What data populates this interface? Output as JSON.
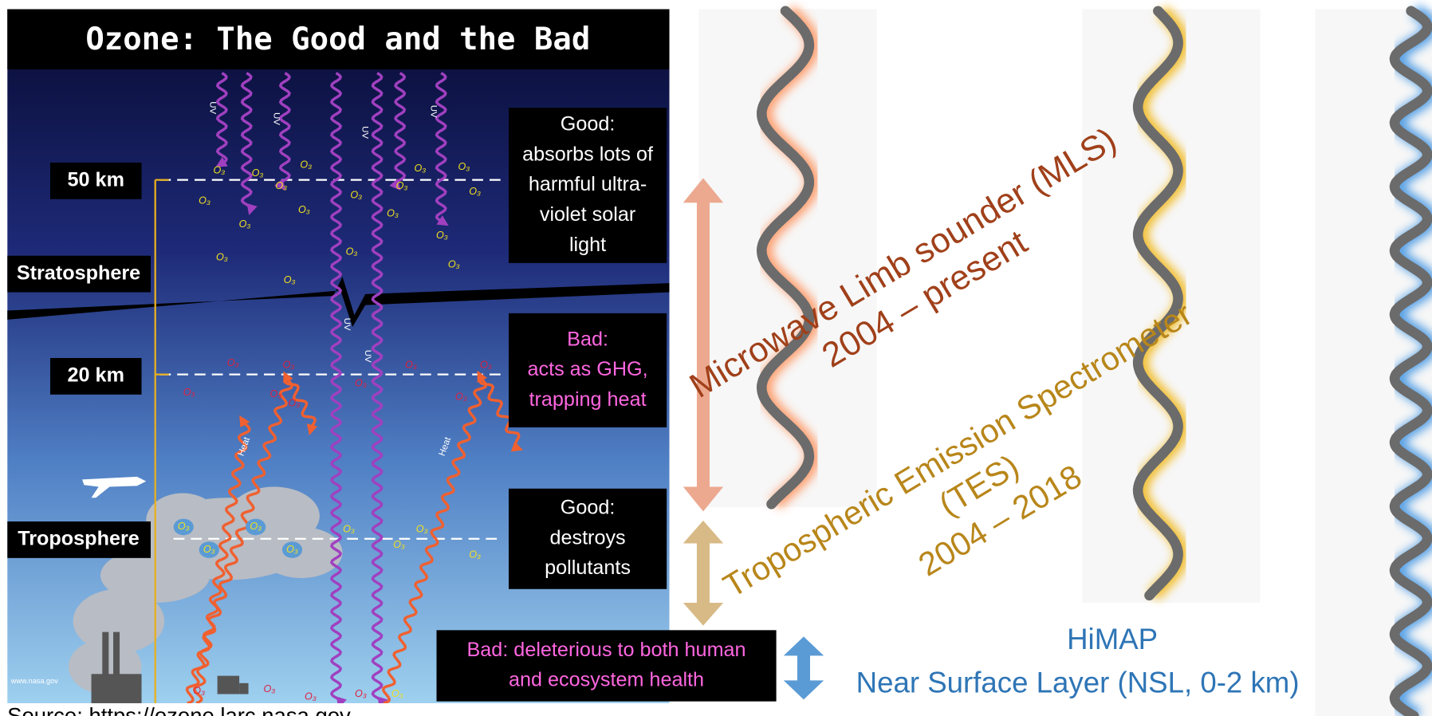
{
  "title": "Ozone: The Good and the Bad",
  "altitude_labels": [
    "50 km",
    "20 km"
  ],
  "layer_labels": [
    "Stratosphere",
    "Troposphere"
  ],
  "annotations": [
    {
      "lines": [
        "Good:",
        "absorbs lots of",
        "harmful ultra-",
        "violet solar",
        "light"
      ]
    },
    {
      "lines": [
        "Bad:",
        "acts as GHG,",
        "trapping heat"
      ]
    },
    {
      "lines": [
        "Good:",
        "destroys",
        "pollutants"
      ]
    },
    {
      "lines": [
        "Bad: deleterious to both human",
        "and ecosystem health"
      ]
    }
  ],
  "uv_label": "UV",
  "heat_label": "Heat",
  "ozone_label": "O₃",
  "credit": "www.nasa.gov",
  "source": "Source: https://ozone.larc.nasa.gov",
  "instruments": [
    {
      "lines": [
        "Microwave Limb sounder (MLS)",
        "2004 – present"
      ]
    },
    {
      "lines": [
        "Tropospheric Emission Spectrometer",
        "(TES)",
        "2004 – 2018"
      ]
    },
    {
      "lines": [
        "HiMAP",
        "Near Surface Layer (NSL, 0-2 km)"
      ]
    }
  ]
}
